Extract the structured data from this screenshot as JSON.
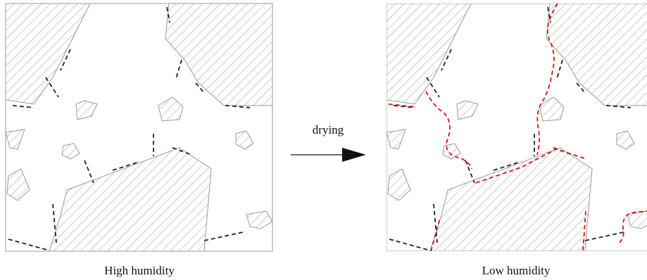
{
  "panels": [
    {
      "caption": "High humidity"
    },
    {
      "caption": "Low humidity"
    }
  ],
  "arrow": {
    "label": "drying"
  }
}
